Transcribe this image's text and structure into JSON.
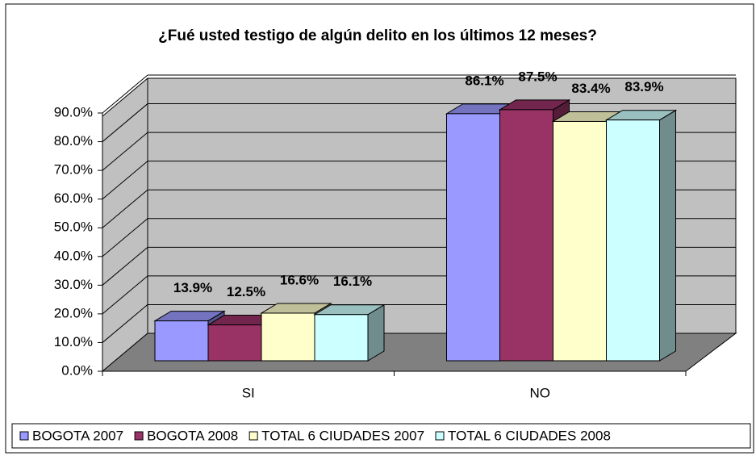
{
  "chart_data": {
    "type": "bar3d",
    "title": "¿Fué usted testigo de algún delito en los últimos 12 meses?",
    "categories": [
      "SI",
      "NO"
    ],
    "series": [
      {
        "name": "BOGOTA 2007",
        "color": "#9999ff",
        "values": [
          13.9,
          86.1
        ],
        "value_labels": [
          "13.9%",
          "86.1%"
        ]
      },
      {
        "name": "BOGOTA 2008",
        "color": "#993366",
        "values": [
          12.5,
          87.5
        ],
        "value_labels": [
          "12.5%",
          "87.5%"
        ]
      },
      {
        "name": "TOTAL 6 CIUDADES 2007",
        "color": "#ffffcc",
        "values": [
          16.6,
          83.4
        ],
        "value_labels": [
          "16.6%",
          "83.4%"
        ]
      },
      {
        "name": "TOTAL 6 CIUDADES 2008",
        "color": "#ccffff",
        "values": [
          16.1,
          83.9
        ],
        "value_labels": [
          "16.1%",
          "83.9%"
        ]
      }
    ],
    "ylim": [
      0,
      90
    ],
    "yticks": [
      {
        "value": 0,
        "label": "0.0%"
      },
      {
        "value": 10,
        "label": "10.0%"
      },
      {
        "value": 20,
        "label": "20.0%"
      },
      {
        "value": 30,
        "label": "30.0%"
      },
      {
        "value": 40,
        "label": "40.0%"
      },
      {
        "value": 50,
        "label": "50.0%"
      },
      {
        "value": 60,
        "label": "60.0%"
      },
      {
        "value": 70,
        "label": "70.0%"
      },
      {
        "value": 80,
        "label": "80.0%"
      },
      {
        "value": 90,
        "label": "90.0%"
      }
    ],
    "grid": true,
    "legend": "bottom"
  }
}
